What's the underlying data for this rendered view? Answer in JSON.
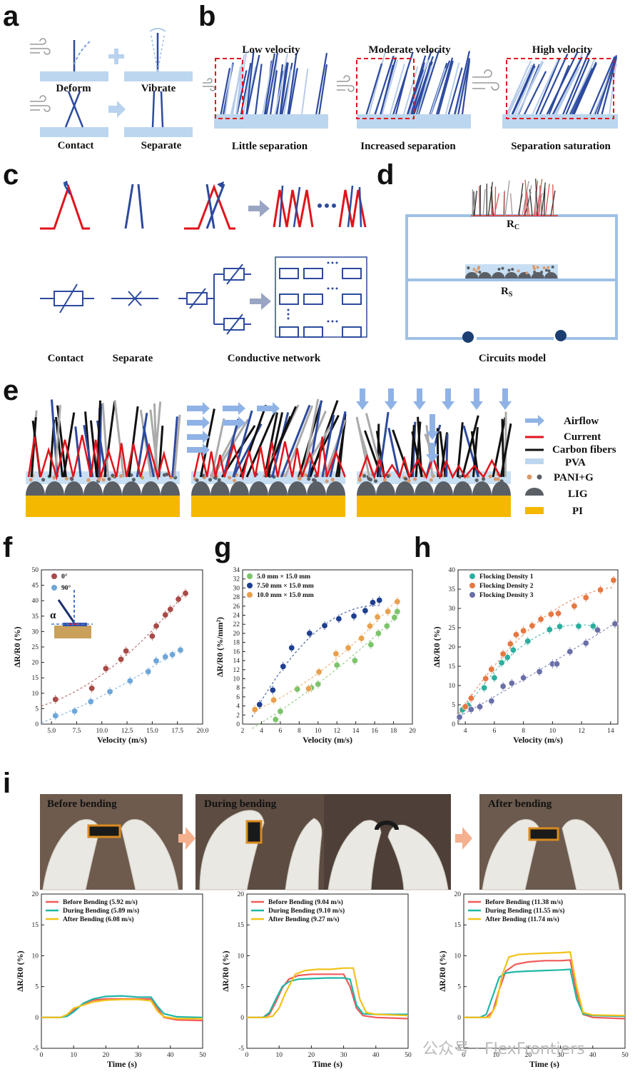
{
  "panels": {
    "a": "a",
    "b": "b",
    "c": "c",
    "d": "d",
    "e": "e",
    "f": "f",
    "g": "g",
    "h": "h",
    "i": "i"
  },
  "a": {
    "deform": "Deform",
    "vibrate": "Vibrate",
    "contact": "Contact",
    "separate": "Separate"
  },
  "b": {
    "low": "Low velocity",
    "moderate": "Moderate velocity",
    "high": "High velocity",
    "little": "Little separation",
    "increased": "Increased separation",
    "saturation": "Separation saturation"
  },
  "c": {
    "contact": "Contact",
    "separate": "Separate",
    "network": "Conductive network"
  },
  "d": {
    "rc": "R",
    "rc_sub": "C",
    "rs": "R",
    "rs_sub": "S",
    "caption": "Circuits model"
  },
  "e": {
    "legend": [
      "Airflow",
      "Current",
      "Carbon fibers",
      "PVA",
      "PANI+G",
      "LIG",
      "PI"
    ]
  },
  "i": {
    "before": "Before bending",
    "during": "During bending",
    "after": "After bending"
  },
  "watermark": "公众号 · FlexFrontiers",
  "colors": {
    "blue": "#2d4a9e",
    "lightblue": "#b9d3ee",
    "red": "#e1131b",
    "gold": "#f4b800",
    "lig": "#5a5f66"
  },
  "chart_data": [
    {
      "id": "f",
      "type": "scatter",
      "xlabel": "Velocity (m/s)",
      "ylabel": "ΔR/R0 (%)",
      "xlim": [
        4,
        20
      ],
      "ylim": [
        0,
        50
      ],
      "xticks": [
        "5.0",
        "7.5",
        "10.0",
        "12.5",
        "15.0",
        "17.5",
        "20.0"
      ],
      "yticks": [
        "0",
        "5",
        "10",
        "15",
        "20",
        "25",
        "30",
        "35",
        "40",
        "45",
        "50"
      ],
      "inset_label": "α",
      "series": [
        {
          "name": "0°",
          "color": "#a84b48",
          "x": [
            5.4,
            9.0,
            10.4,
            11.9,
            12.4,
            15.0,
            15.4,
            16.3,
            16.8,
            17.6,
            18.3
          ],
          "y": [
            8,
            11.6,
            18,
            21,
            23.7,
            28.5,
            31.8,
            35.4,
            37.2,
            40.5,
            42.4
          ]
        },
        {
          "name": "90°",
          "color": "#6ea6d9",
          "x": [
            5.4,
            7.3,
            8.9,
            10.8,
            12.8,
            14.6,
            15.4,
            16.3,
            17.0,
            17.8
          ],
          "y": [
            2.7,
            4.2,
            7.3,
            10.5,
            14,
            17,
            20.5,
            21.8,
            22.5,
            24
          ]
        }
      ]
    },
    {
      "id": "g",
      "type": "scatter",
      "xlabel": "Velocity (m/s)",
      "ylabel": "ΔR/R0 (%/mm²)",
      "xlim": [
        2,
        20
      ],
      "ylim": [
        0,
        34
      ],
      "xticks": [
        "2",
        "4",
        "6",
        "8",
        "10",
        "12",
        "14",
        "16",
        "18",
        "20"
      ],
      "yticks": [
        "0",
        "2",
        "4",
        "6",
        "8",
        "10",
        "12",
        "14",
        "16",
        "18",
        "20",
        "22",
        "24",
        "26",
        "28",
        "30",
        "32",
        "34"
      ],
      "series": [
        {
          "name": "5.0 mm × 15.0 mm",
          "color": "#7cc36b",
          "x": [
            5.5,
            6.0,
            7.8,
            9.3,
            10.0,
            12.0,
            13.9,
            15.6,
            16.4,
            17.3,
            18.1,
            18.4
          ],
          "y": [
            1.0,
            2.8,
            7.7,
            8.0,
            8.8,
            13.0,
            14.0,
            17.5,
            20.0,
            21.6,
            23.5,
            24.8
          ]
        },
        {
          "name": "7.50 mm × 15.0 mm",
          "color": "#1f3f8f",
          "x": [
            3.8,
            5.2,
            6.3,
            7.2,
            9.1,
            10.7,
            12.2,
            13.8,
            15.0,
            15.8,
            16.5
          ],
          "y": [
            4.3,
            7.5,
            12.7,
            16.8,
            20.0,
            21.7,
            23.2,
            23.8,
            25.0,
            26.8,
            27.3
          ]
        },
        {
          "name": "10.0 mm × 15.0 mm",
          "color": "#e8a04f",
          "x": [
            3.3,
            5.3,
            9.0,
            10.1,
            11.9,
            13.2,
            14.6,
            15.5,
            16.3,
            17.4,
            18.4
          ],
          "y": [
            3.2,
            5.3,
            7.8,
            11.5,
            15.5,
            16.8,
            18.9,
            21.6,
            23.6,
            24.8,
            27.0
          ]
        }
      ]
    },
    {
      "id": "h",
      "type": "scatter",
      "xlabel": "Velocity (m/s)",
      "ylabel": "ΔR/R0 (%)",
      "xlim": [
        3.5,
        14.5
      ],
      "ylim": [
        0,
        40
      ],
      "xticks": [
        "4",
        "6",
        "8",
        "10",
        "12",
        "14"
      ],
      "yticks": [
        "0",
        "5",
        "10",
        "15",
        "20",
        "25",
        "30",
        "35",
        "40"
      ],
      "series": [
        {
          "name": "Flocking Density 1",
          "color": "#2cae9e",
          "x": [
            3.8,
            4.2,
            5.3,
            6.0,
            6.5,
            6.9,
            7.3,
            8.3,
            9.8,
            10.5,
            11.8,
            12.8
          ],
          "y": [
            3.7,
            4.8,
            9.4,
            12.0,
            15.9,
            17.3,
            19.2,
            21.5,
            24.5,
            25.3,
            25.4,
            25.4
          ]
        },
        {
          "name": "Flocking Density 2",
          "color": "#e67742",
          "x": [
            4.0,
            4.4,
            5.4,
            5.8,
            6.6,
            7.1,
            7.5,
            8.0,
            8.6,
            9.2,
            9.9,
            10.4,
            11.5,
            12.3,
            13.3,
            14.2
          ],
          "y": [
            4.5,
            6.7,
            11.8,
            14.2,
            18.2,
            20.8,
            23.2,
            24.2,
            25.5,
            27.2,
            28.5,
            28.7,
            30.6,
            32.8,
            34.8,
            37.3
          ]
        },
        {
          "name": "Flocking Density 3",
          "color": "#6a6fa8",
          "x": [
            3.6,
            4.4,
            5.0,
            5.8,
            6.6,
            7.2,
            8.0,
            9.1,
            10.0,
            10.3,
            11.2,
            12.3,
            13.1,
            14.3
          ],
          "y": [
            1.8,
            3.8,
            4.5,
            6.0,
            9.8,
            10.6,
            12.0,
            13.6,
            15.6,
            15.6,
            18.8,
            21.0,
            24.4,
            26.0
          ]
        }
      ]
    },
    {
      "id": "i1",
      "type": "line",
      "xlabel": "Time (s)",
      "ylabel": "ΔR/R0 (%)",
      "xlim": [
        0,
        50
      ],
      "ylim": [
        -5,
        20
      ],
      "xticks": [
        "0",
        "10",
        "20",
        "30",
        "40",
        "50"
      ],
      "yticks": [
        "-5",
        "0",
        "5",
        "10",
        "15",
        "20"
      ],
      "series": [
        {
          "name": "Before Bending (5.92 m/s)",
          "color": "#f15a5a",
          "x": [
            0,
            6,
            8,
            10,
            13,
            16,
            20,
            25,
            30,
            34,
            36,
            38,
            42,
            50
          ],
          "y": [
            0,
            0,
            0.3,
            1.2,
            2.2,
            2.8,
            3.0,
            3.0,
            3.0,
            3.0,
            1.5,
            0,
            -0.4,
            -0.5
          ]
        },
        {
          "name": "During Bending (5.89 m/s)",
          "color": "#1fb7a6",
          "x": [
            0,
            6,
            8,
            10,
            13,
            16,
            20,
            25,
            30,
            34,
            36,
            38,
            42,
            50
          ],
          "y": [
            0,
            0,
            0.2,
            0.9,
            2.3,
            3.0,
            3.4,
            3.5,
            3.3,
            3.3,
            1.8,
            0.6,
            0.1,
            0
          ]
        },
        {
          "name": "After Bending (6.08 m/s)",
          "color": "#f2c21a",
          "x": [
            0,
            6,
            8,
            10,
            13,
            16,
            20,
            25,
            30,
            34,
            36,
            38,
            42,
            50
          ],
          "y": [
            0,
            0,
            0.5,
            1.5,
            2.0,
            2.5,
            2.8,
            2.9,
            2.9,
            2.7,
            1.0,
            0.1,
            -0.2,
            -0.2
          ]
        }
      ]
    },
    {
      "id": "i2",
      "type": "line",
      "xlabel": "Time (s)",
      "ylabel": "ΔR/R0 (%)",
      "xlim": [
        0,
        50
      ],
      "ylim": [
        -5,
        20
      ],
      "xticks": [
        "0",
        "10",
        "20",
        "30",
        "40",
        "50"
      ],
      "yticks": [
        "-5",
        "0",
        "5",
        "10",
        "15",
        "20"
      ],
      "series": [
        {
          "name": "Before Bending (9.04 m/s)",
          "color": "#f15a5a",
          "x": [
            0,
            5,
            7,
            9,
            11,
            13,
            16,
            20,
            25,
            30,
            32,
            34,
            36,
            40,
            50
          ],
          "y": [
            0,
            0,
            0.5,
            2.5,
            4.8,
            6.2,
            6.8,
            7.0,
            7.0,
            7.0,
            5.0,
            1.5,
            0.3,
            0,
            -0.2
          ]
        },
        {
          "name": "During Bending (9.10 m/s)",
          "color": "#1fb7a6",
          "x": [
            0,
            5,
            7,
            9,
            11,
            13,
            16,
            20,
            25,
            30,
            32,
            34,
            36,
            40,
            50
          ],
          "y": [
            0,
            0,
            0.8,
            3.0,
            5.0,
            5.8,
            6.2,
            6.3,
            6.4,
            6.4,
            6.2,
            2.0,
            0.6,
            0.5,
            0.5
          ]
        },
        {
          "name": "After Bending (9.27 m/s)",
          "color": "#f2c21a",
          "x": [
            0,
            6,
            8,
            10,
            12,
            15,
            18,
            22,
            26,
            30,
            33,
            35,
            37,
            40,
            50
          ],
          "y": [
            0,
            0,
            0.2,
            1.5,
            4.0,
            7.0,
            7.6,
            7.8,
            7.8,
            8.0,
            8.0,
            3.0,
            0.8,
            0.5,
            0.3
          ]
        }
      ]
    },
    {
      "id": "i3",
      "type": "line",
      "xlabel": "Time (s)",
      "ylabel": "ΔR/R0 (%)",
      "xlim": [
        0,
        50
      ],
      "ylim": [
        -5,
        20
      ],
      "xticks": [
        "0",
        "10",
        "20",
        "30",
        "40",
        "50"
      ],
      "yticks": [
        "-5",
        "0",
        "5",
        "10",
        "15",
        "20"
      ],
      "series": [
        {
          "name": "Before Bending (11.38 m/s)",
          "color": "#f15a5a",
          "x": [
            0,
            7,
            9,
            11,
            13,
            16,
            20,
            25,
            30,
            33,
            35,
            37,
            40,
            50
          ],
          "y": [
            0,
            0,
            1.0,
            4.5,
            7.5,
            8.6,
            9.0,
            9.2,
            9.2,
            9.3,
            4.0,
            0.5,
            0,
            -0.2
          ]
        },
        {
          "name": "During Bending (11.55 m/s)",
          "color": "#1fb7a6",
          "x": [
            0,
            5,
            7,
            9,
            11,
            13,
            16,
            20,
            25,
            30,
            33,
            35,
            37,
            40,
            50
          ],
          "y": [
            0,
            0,
            0.5,
            3.5,
            6.5,
            7.2,
            7.4,
            7.5,
            7.6,
            7.7,
            7.8,
            3.0,
            0.6,
            0.3,
            0.2
          ]
        },
        {
          "name": "After Bending (11.74 m/s)",
          "color": "#f2c21a",
          "x": [
            0,
            8,
            10,
            12,
            14,
            17,
            20,
            25,
            30,
            33,
            35,
            37,
            40,
            50
          ],
          "y": [
            0,
            0,
            2.0,
            7.0,
            9.8,
            10.2,
            10.3,
            10.4,
            10.5,
            10.6,
            5.0,
            0.8,
            0.4,
            0.3
          ]
        }
      ]
    }
  ]
}
